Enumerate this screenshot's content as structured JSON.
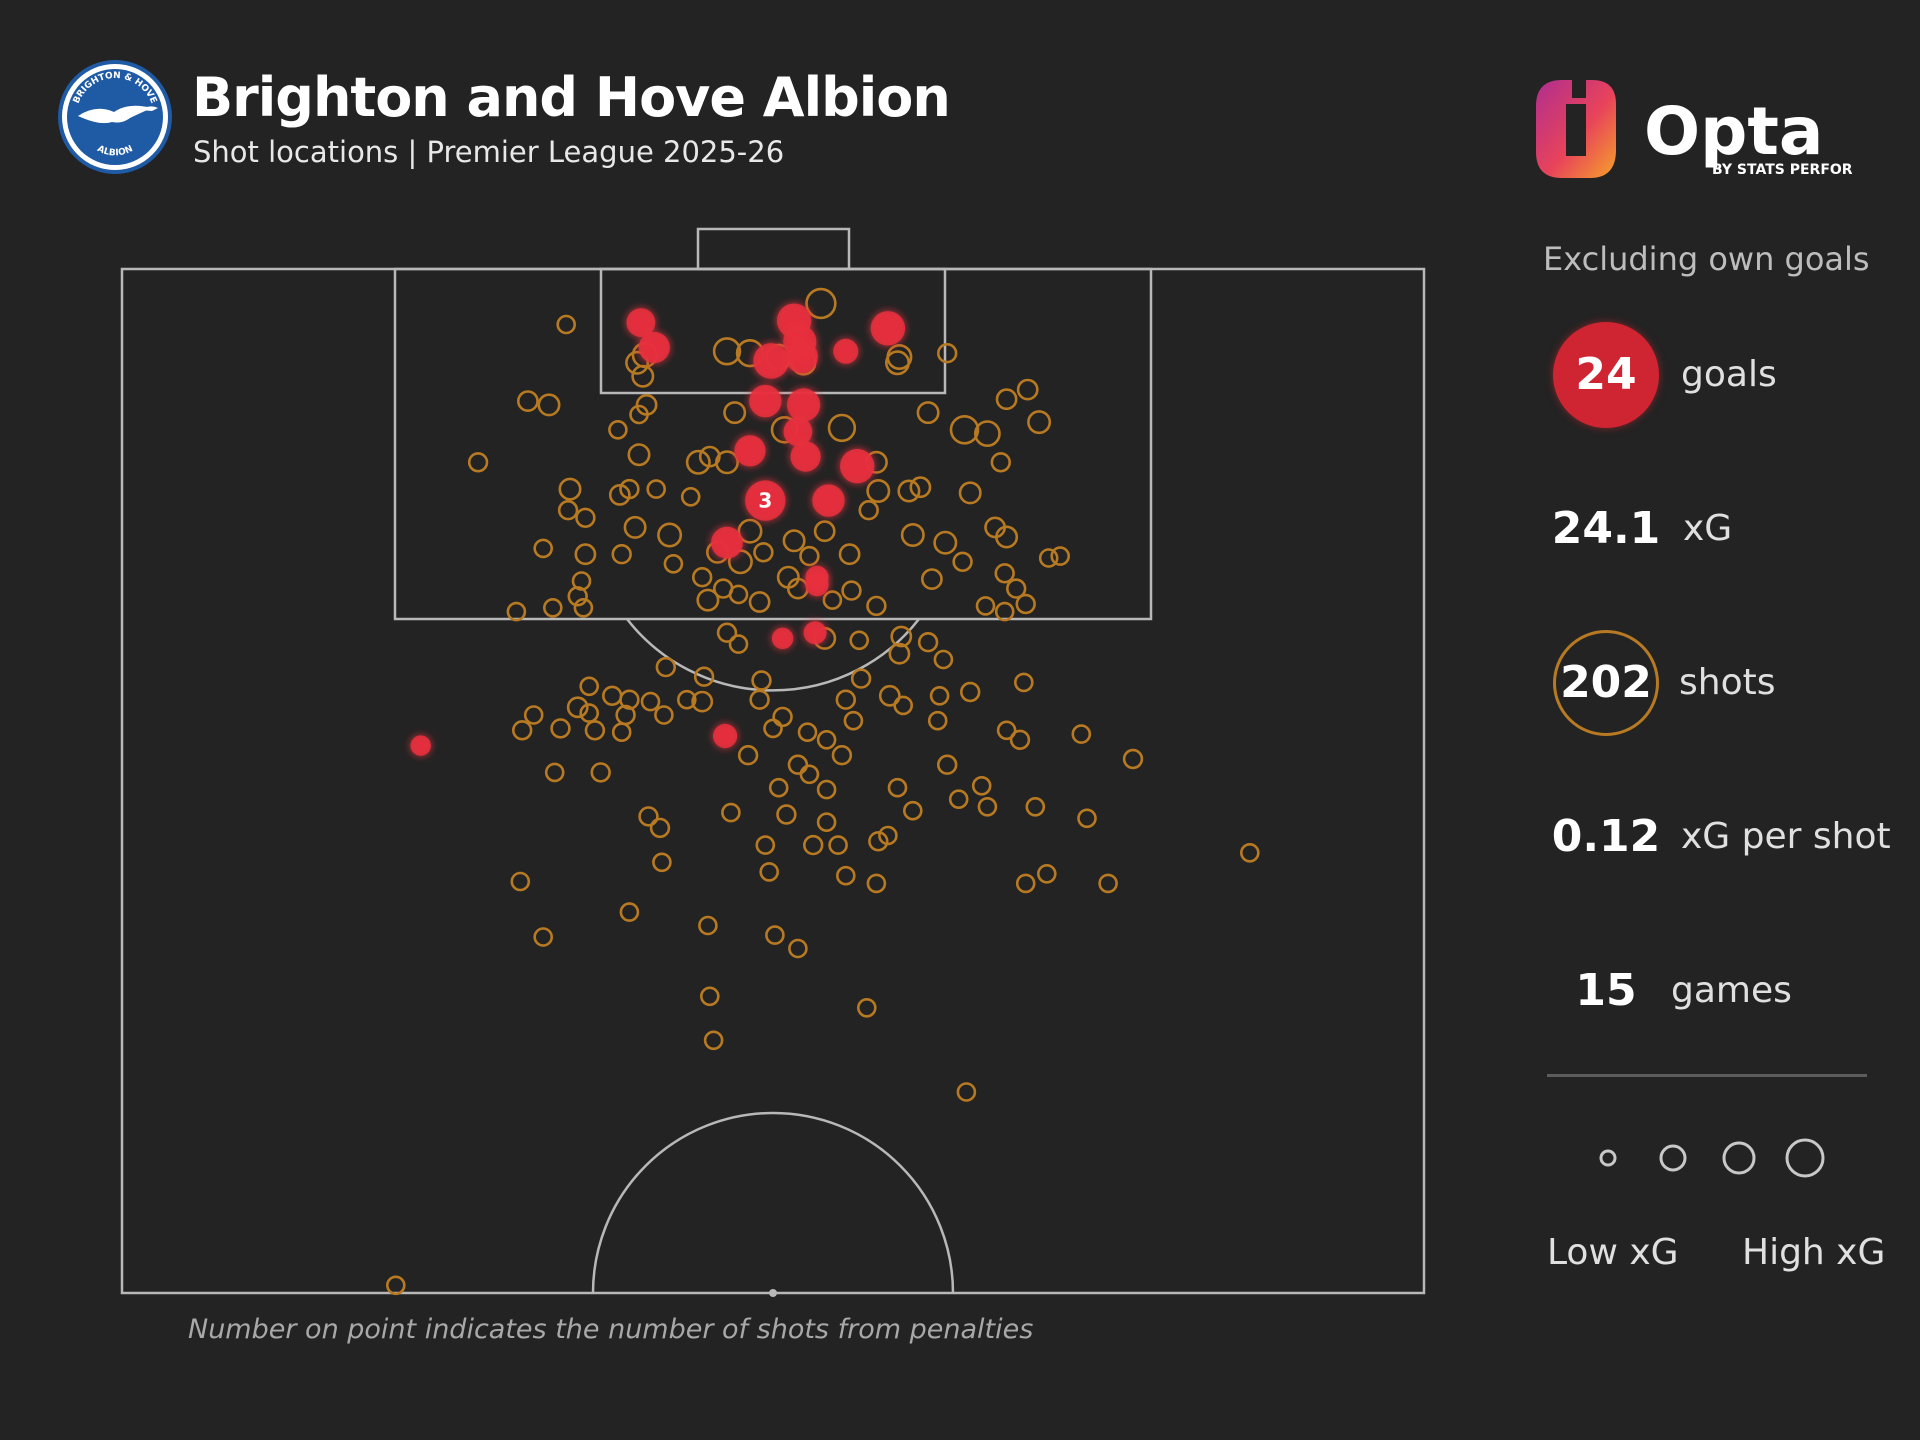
{
  "header": {
    "title": "Brighton and Hove Albion",
    "subtitle": "Shot locations | Premier League 2025-26",
    "crest_text_top": "BRIGHTON & HOVE",
    "crest_text_bottom": "ALBION"
  },
  "brand": {
    "name": "Opta",
    "tagline": "BY STATS PERFORM"
  },
  "panel": {
    "note": "Excluding own goals",
    "stats": [
      {
        "value": "24",
        "label": "goals"
      },
      {
        "value": "24.1",
        "label": "xG"
      },
      {
        "value": "202",
        "label": "shots"
      },
      {
        "value": "0.12",
        "label": "xG per shot"
      },
      {
        "value": "15",
        "label": "games"
      }
    ],
    "legend": {
      "low": "Low xG",
      "high": "High xG"
    }
  },
  "footnote": "Number on point indicates the number of shots from penalties",
  "colors": {
    "background": "#232323",
    "goal": "#e8303e",
    "shot": "#b77a22",
    "pitch_lines": "#b8b8b8"
  },
  "chart_data": {
    "type": "scatter",
    "x_axis": "pitch width (m, 0 = left touchline, 68 = right touchline)",
    "y_axis": "distance from goal line (m)",
    "xlim": [
      0,
      68
    ],
    "ylim": [
      0,
      53.5
    ],
    "goals": [
      [
        27.1,
        2.8,
        0.3
      ],
      [
        27.8,
        4.1,
        0.38
      ],
      [
        35.1,
        2.7,
        0.5
      ],
      [
        35.4,
        3.8,
        0.45
      ],
      [
        33.9,
        4.8,
        0.55
      ],
      [
        35.5,
        4.6,
        0.42
      ],
      [
        40.0,
        3.1,
        0.5
      ],
      [
        37.8,
        4.3,
        0.2
      ],
      [
        33.6,
        6.9,
        0.42
      ],
      [
        35.6,
        7.1,
        0.45
      ],
      [
        35.3,
        8.5,
        0.3
      ],
      [
        32.8,
        9.5,
        0.38
      ],
      [
        35.7,
        9.8,
        0.35
      ],
      [
        38.4,
        10.3,
        0.5
      ],
      [
        36.9,
        12.1,
        0.42
      ],
      [
        33.6,
        12.1,
        0.76,
        3
      ],
      [
        31.6,
        14.3,
        0.4
      ],
      [
        36.3,
        16.1,
        0.15
      ],
      [
        36.3,
        16.5,
        0.15
      ],
      [
        36.2,
        19.0,
        0.15
      ],
      [
        34.5,
        19.3,
        0.12
      ],
      [
        31.5,
        24.4,
        0.18
      ],
      [
        15.6,
        24.9,
        0.1
      ]
    ],
    "shots": [
      [
        23.2,
        2.9,
        0.05
      ],
      [
        36.5,
        1.8,
        0.3
      ],
      [
        31.6,
        4.3,
        0.22
      ],
      [
        32.8,
        4.4,
        0.22
      ],
      [
        34.3,
        4.6,
        0.18
      ],
      [
        35.6,
        4.9,
        0.15
      ],
      [
        27.3,
        4.5,
        0.16
      ],
      [
        26.9,
        4.9,
        0.12
      ],
      [
        27.2,
        5.6,
        0.1
      ],
      [
        40.6,
        4.6,
        0.16
      ],
      [
        40.5,
        4.9,
        0.14
      ],
      [
        43.1,
        4.4,
        0.06
      ],
      [
        21.2,
        6.9,
        0.08
      ],
      [
        22.3,
        7.1,
        0.1
      ],
      [
        27.4,
        7.1,
        0.08
      ],
      [
        27.0,
        7.6,
        0.05
      ],
      [
        32.0,
        7.5,
        0.1
      ],
      [
        34.6,
        8.4,
        0.2
      ],
      [
        37.6,
        8.3,
        0.22
      ],
      [
        42.1,
        7.5,
        0.1
      ],
      [
        46.2,
        6.8,
        0.08
      ],
      [
        47.3,
        6.3,
        0.08
      ],
      [
        44.0,
        8.4,
        0.25
      ],
      [
        45.2,
        8.6,
        0.18
      ],
      [
        47.9,
        8.0,
        0.12
      ],
      [
        25.9,
        8.4,
        0.05
      ],
      [
        18.6,
        10.1,
        0.06
      ],
      [
        27.0,
        9.7,
        0.1
      ],
      [
        30.1,
        10.1,
        0.14
      ],
      [
        30.7,
        9.8,
        0.08
      ],
      [
        31.6,
        10.1,
        0.12
      ],
      [
        39.4,
        10.1,
        0.1
      ],
      [
        45.9,
        10.1,
        0.06
      ],
      [
        23.4,
        11.5,
        0.1
      ],
      [
        26.5,
        11.5,
        0.06
      ],
      [
        26.0,
        11.8,
        0.08
      ],
      [
        27.9,
        11.5,
        0.05
      ],
      [
        29.7,
        11.9,
        0.05
      ],
      [
        39.5,
        11.6,
        0.12
      ],
      [
        41.1,
        11.6,
        0.1
      ],
      [
        41.7,
        11.4,
        0.08
      ],
      [
        44.3,
        11.7,
        0.1
      ],
      [
        39.0,
        12.6,
        0.06
      ],
      [
        23.3,
        12.6,
        0.06
      ],
      [
        24.2,
        13.0,
        0.06
      ],
      [
        26.8,
        13.5,
        0.1
      ],
      [
        28.6,
        13.9,
        0.14
      ],
      [
        32.8,
        13.7,
        0.14
      ],
      [
        35.1,
        14.2,
        0.1
      ],
      [
        36.7,
        13.7,
        0.08
      ],
      [
        41.3,
        13.9,
        0.12
      ],
      [
        43.0,
        14.3,
        0.12
      ],
      [
        45.6,
        13.5,
        0.08
      ],
      [
        46.2,
        14.0,
        0.1
      ],
      [
        22.0,
        14.6,
        0.05
      ],
      [
        24.2,
        14.9,
        0.08
      ],
      [
        26.1,
        14.9,
        0.06
      ],
      [
        28.8,
        15.4,
        0.05
      ],
      [
        31.1,
        14.8,
        0.1
      ],
      [
        32.3,
        15.3,
        0.14
      ],
      [
        33.5,
        14.8,
        0.06
      ],
      [
        35.9,
        15.0,
        0.06
      ],
      [
        38.0,
        14.9,
        0.08
      ],
      [
        31.4,
        16.7,
        0.06
      ],
      [
        30.3,
        16.1,
        0.06
      ],
      [
        34.8,
        16.1,
        0.1
      ],
      [
        24.0,
        16.3,
        0.05
      ],
      [
        35.3,
        16.7,
        0.08
      ],
      [
        30.6,
        17.3,
        0.1
      ],
      [
        32.2,
        17.0,
        0.05
      ],
      [
        33.3,
        17.4,
        0.08
      ],
      [
        37.1,
        17.3,
        0.05
      ],
      [
        42.3,
        16.2,
        0.08
      ],
      [
        43.9,
        15.3,
        0.06
      ],
      [
        46.1,
        15.9,
        0.06
      ],
      [
        46.7,
        16.7,
        0.06
      ],
      [
        45.1,
        17.6,
        0.05
      ],
      [
        49.0,
        15.0,
        0.05
      ],
      [
        23.8,
        17.1,
        0.06
      ],
      [
        24.1,
        17.7,
        0.05
      ],
      [
        38.1,
        16.8,
        0.06
      ],
      [
        39.4,
        17.6,
        0.06
      ],
      [
        47.2,
        17.5,
        0.06
      ],
      [
        46.1,
        17.9,
        0.05
      ],
      [
        20.6,
        17.9,
        0.05
      ],
      [
        22.5,
        17.7,
        0.05
      ],
      [
        31.6,
        19.0,
        0.06
      ],
      [
        32.2,
        19.6,
        0.05
      ],
      [
        36.7,
        19.3,
        0.1
      ],
      [
        38.5,
        19.4,
        0.05
      ],
      [
        40.7,
        19.2,
        0.08
      ],
      [
        42.1,
        19.5,
        0.06
      ],
      [
        40.6,
        20.1,
        0.08
      ],
      [
        42.9,
        20.4,
        0.05
      ],
      [
        28.4,
        20.8,
        0.06
      ],
      [
        30.4,
        21.3,
        0.06
      ],
      [
        33.4,
        21.5,
        0.06
      ],
      [
        38.6,
        21.4,
        0.06
      ],
      [
        24.4,
        21.8,
        0.05
      ],
      [
        25.6,
        22.3,
        0.06
      ],
      [
        26.5,
        22.5,
        0.06
      ],
      [
        27.6,
        22.6,
        0.05
      ],
      [
        29.5,
        22.5,
        0.05
      ],
      [
        30.3,
        22.6,
        0.08
      ],
      [
        33.3,
        22.5,
        0.06
      ],
      [
        37.8,
        22.5,
        0.06
      ],
      [
        40.1,
        22.3,
        0.08
      ],
      [
        40.8,
        22.8,
        0.05
      ],
      [
        42.7,
        22.3,
        0.05
      ],
      [
        44.3,
        22.1,
        0.06
      ],
      [
        47.1,
        21.6,
        0.05
      ],
      [
        21.5,
        23.3,
        0.05
      ],
      [
        23.8,
        22.9,
        0.08
      ],
      [
        24.4,
        23.2,
        0.05
      ],
      [
        26.3,
        23.3,
        0.06
      ],
      [
        28.3,
        23.3,
        0.05
      ],
      [
        34.5,
        23.4,
        0.06
      ],
      [
        34.0,
        24.0,
        0.05
      ],
      [
        38.2,
        23.6,
        0.05
      ],
      [
        42.6,
        23.6,
        0.05
      ],
      [
        46.2,
        24.1,
        0.05
      ],
      [
        20.9,
        24.1,
        0.06
      ],
      [
        22.9,
        24.0,
        0.06
      ],
      [
        24.7,
        24.1,
        0.06
      ],
      [
        26.1,
        24.2,
        0.05
      ],
      [
        35.8,
        24.2,
        0.05
      ],
      [
        36.8,
        24.6,
        0.05
      ],
      [
        46.9,
        24.6,
        0.06
      ],
      [
        50.1,
        24.3,
        0.05
      ],
      [
        52.8,
        25.6,
        0.06
      ],
      [
        32.7,
        25.4,
        0.06
      ],
      [
        35.3,
        25.9,
        0.06
      ],
      [
        37.6,
        25.4,
        0.06
      ],
      [
        43.1,
        25.9,
        0.06
      ],
      [
        22.6,
        26.3,
        0.05
      ],
      [
        25.0,
        26.3,
        0.06
      ],
      [
        35.9,
        26.4,
        0.05
      ],
      [
        34.3,
        27.1,
        0.05
      ],
      [
        36.8,
        27.2,
        0.05
      ],
      [
        40.5,
        27.1,
        0.05
      ],
      [
        44.9,
        27.0,
        0.05
      ],
      [
        43.7,
        27.7,
        0.05
      ],
      [
        45.2,
        28.1,
        0.05
      ],
      [
        47.7,
        28.1,
        0.05
      ],
      [
        50.4,
        28.7,
        0.05
      ],
      [
        27.5,
        28.6,
        0.06
      ],
      [
        28.1,
        29.2,
        0.06
      ],
      [
        31.8,
        28.4,
        0.05
      ],
      [
        34.7,
        28.5,
        0.06
      ],
      [
        36.8,
        28.9,
        0.05
      ],
      [
        40.0,
        29.6,
        0.05
      ],
      [
        41.3,
        28.3,
        0.05
      ],
      [
        39.5,
        29.9,
        0.06
      ],
      [
        33.6,
        30.1,
        0.05
      ],
      [
        36.1,
        30.1,
        0.06
      ],
      [
        37.4,
        30.1,
        0.05
      ],
      [
        28.2,
        31.0,
        0.05
      ],
      [
        33.8,
        31.5,
        0.05
      ],
      [
        37.8,
        31.7,
        0.05
      ],
      [
        39.4,
        32.1,
        0.05
      ],
      [
        20.8,
        32.0,
        0.05
      ],
      [
        47.2,
        32.1,
        0.05
      ],
      [
        48.3,
        31.6,
        0.05
      ],
      [
        51.5,
        32.1,
        0.05
      ],
      [
        26.5,
        33.6,
        0.05
      ],
      [
        30.6,
        34.3,
        0.05
      ],
      [
        34.1,
        34.8,
        0.05
      ],
      [
        22.0,
        34.9,
        0.05
      ],
      [
        35.3,
        35.5,
        0.05
      ],
      [
        58.9,
        30.5,
        0.05
      ],
      [
        30.7,
        38.0,
        0.05
      ],
      [
        38.9,
        38.6,
        0.05
      ],
      [
        30.9,
        40.3,
        0.05
      ],
      [
        44.1,
        43.0,
        0.05
      ],
      [
        14.3,
        53.1,
        0.05
      ],
      [
        48.4,
        15.1,
        0.05
      ]
    ]
  }
}
